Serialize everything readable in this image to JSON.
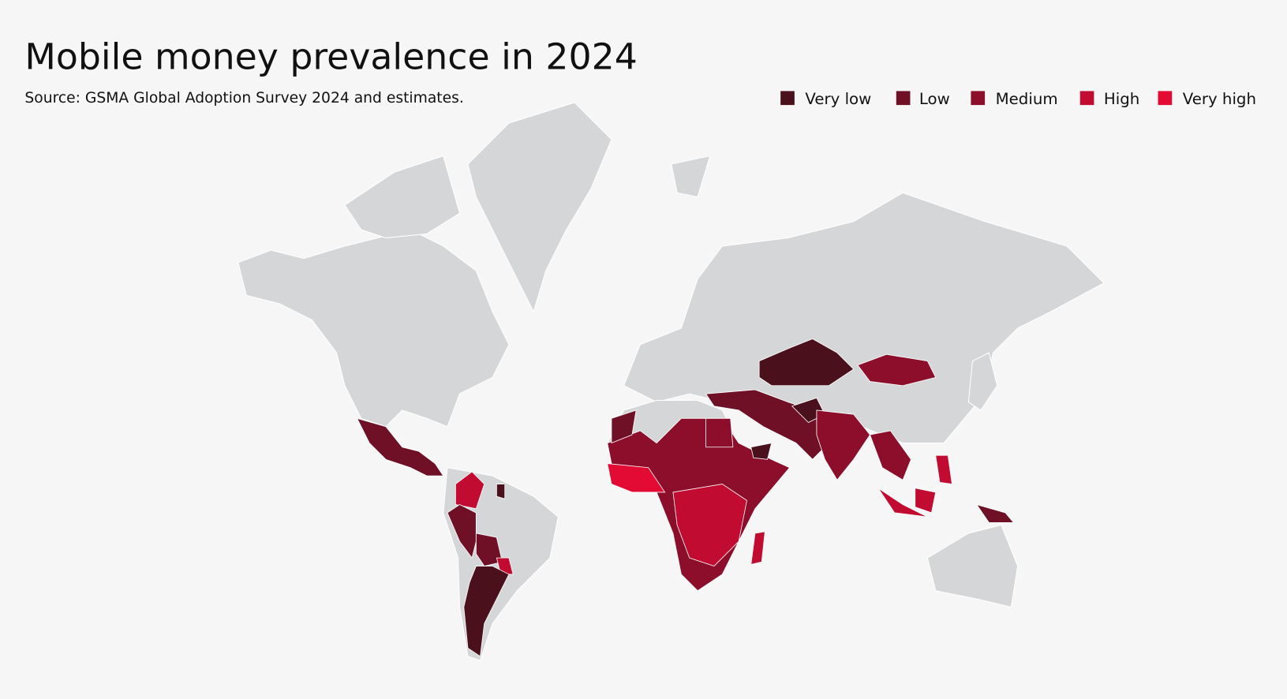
{
  "title": "Mobile money prevalence in 2024",
  "source": "Source: GSMA Global Adoption Survey 2024 and estimates.",
  "legend": {
    "items": [
      {
        "label": "Very low",
        "color": "#4a111c"
      },
      {
        "label": "Low",
        "color": "#6f1026"
      },
      {
        "label": "Medium",
        "color": "#8c0e2b"
      },
      {
        "label": "High",
        "color": "#c20b31"
      },
      {
        "label": "Very high",
        "color": "#e30a33"
      }
    ]
  }
}
